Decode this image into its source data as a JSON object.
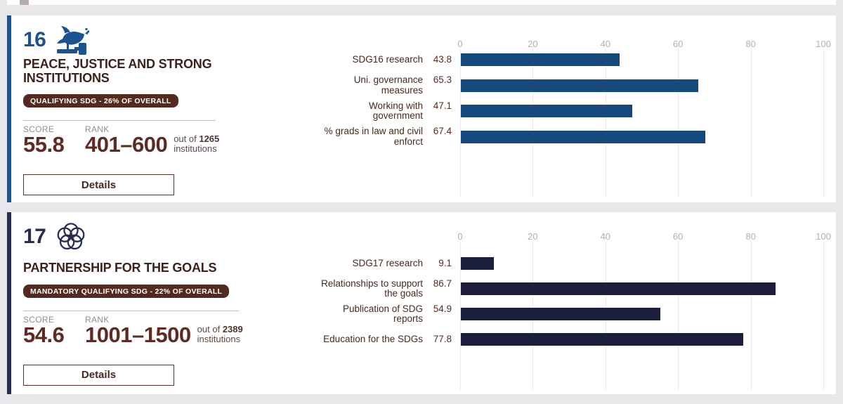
{
  "page": {
    "background_color": "#e9e7ea",
    "card_background": "#ffffff",
    "badge_background": "#552a1e",
    "text_brown": "#3d221c"
  },
  "cards": [
    {
      "sdg_number": "16",
      "icon": "dove-on-gavel-icon",
      "accent_color": "#1b5291",
      "title": "PEACE, JUSTICE AND STRONG INSTITUTIONS",
      "badge": "QUALIFYING SDG - 26% OF OVERALL",
      "score_label": "SCORE",
      "score": "55.8",
      "rank_label": "RANK",
      "rank": "401–600",
      "out_of_prefix": "out of",
      "out_of_total": "1265",
      "out_of_suffix": "institutions",
      "details_label": "Details"
    },
    {
      "sdg_number": "17",
      "icon": "sdg-wheel-flower-icon",
      "accent_color": "#272c55",
      "title": "PARTNERSHIP FOR THE GOALS",
      "badge": "MANDATORY QUALIFYING SDG - 22% OF OVERALL",
      "score_label": "SCORE",
      "score": "54.6",
      "rank_label": "RANK",
      "rank": "1001–1500",
      "out_of_prefix": "out of",
      "out_of_total": "2389",
      "out_of_suffix": "institutions",
      "details_label": "Details"
    }
  ],
  "chart_data": [
    {
      "type": "bar",
      "title": "SDG 16 metric scores",
      "categories": [
        "SDG16 research",
        "Uni. governance\nmeasures",
        "Working with\ngovernment",
        "% grads in law and civil\nenforct"
      ],
      "values": [
        43.8,
        65.3,
        47.1,
        67.4
      ],
      "xlim": [
        0,
        100
      ],
      "ticks": [
        0,
        20,
        40,
        60,
        80,
        100
      ],
      "bar_color": "#15497e",
      "grid": true,
      "axis_position": "top"
    },
    {
      "type": "bar",
      "title": "SDG 17 metric scores",
      "categories": [
        "SDG17 research",
        "Relationships to support\nthe goals",
        "Publication of SDG\nreports",
        "Education for the SDGs"
      ],
      "values": [
        9.1,
        86.7,
        54.9,
        77.8
      ],
      "xlim": [
        0,
        100
      ],
      "ticks": [
        0,
        20,
        40,
        60,
        80,
        100
      ],
      "bar_color": "#1b1f3c",
      "grid": true,
      "axis_position": "top"
    }
  ]
}
